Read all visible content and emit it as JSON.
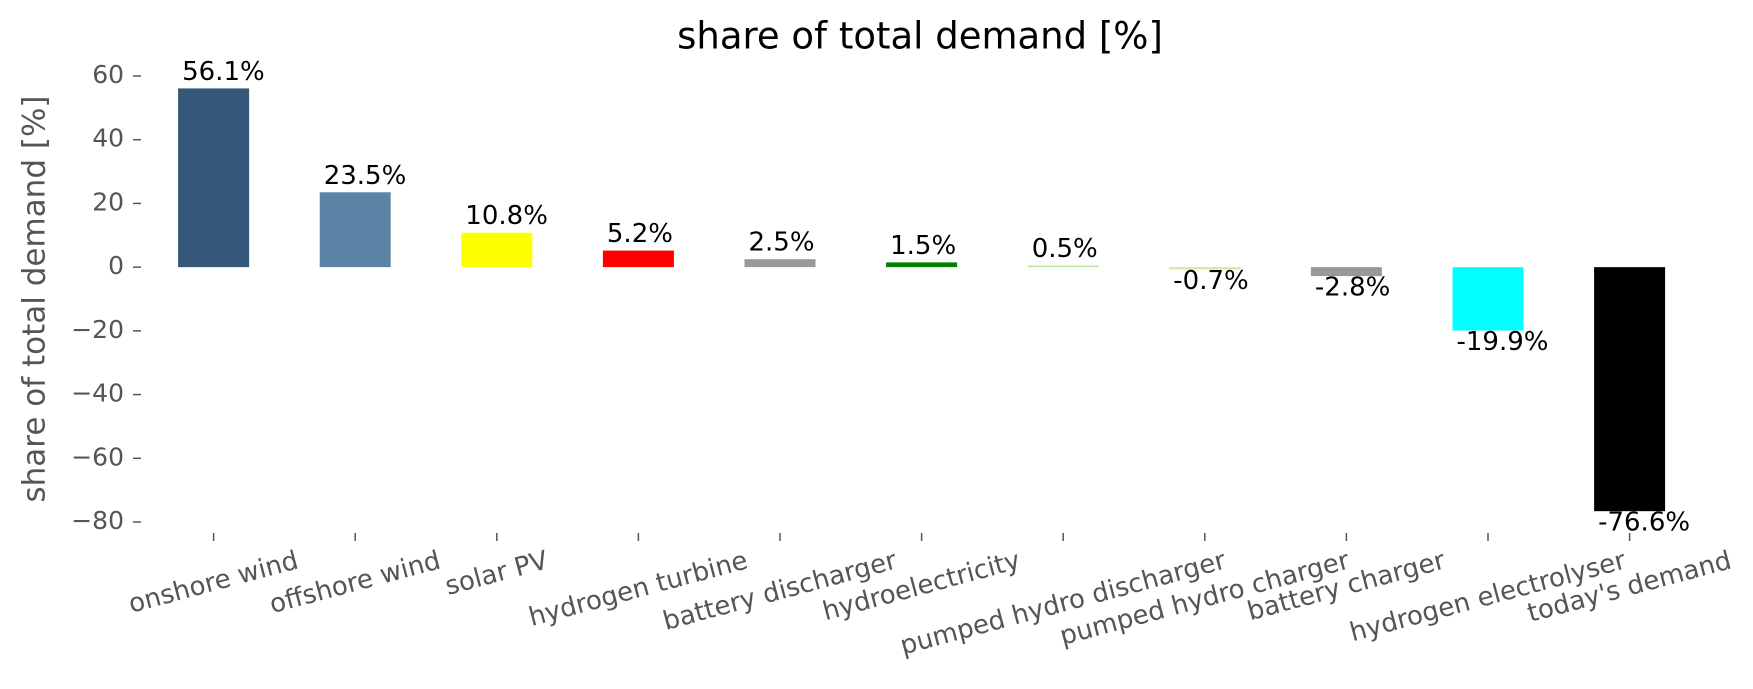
{
  "chart_data": {
    "type": "bar",
    "title": "share of total demand [%]",
    "y_label": "share of total demand [%]",
    "categories": [
      "onshore wind",
      "offshore wind",
      "solar PV",
      "hydrogen turbine",
      "battery discharger",
      "hydroelectricity",
      "pumped hydro discharger",
      "pumped hydro charger",
      "battery charger",
      "hydrogen electrolyser",
      "today's demand"
    ],
    "values": [
      56.1,
      23.5,
      10.8,
      5.2,
      2.5,
      1.5,
      0.5,
      -0.7,
      -2.8,
      -19.9,
      -76.6
    ],
    "value_labels": [
      "56.1%",
      "23.5%",
      "10.8%",
      "5.2%",
      "2.5%",
      "1.5%",
      "0.5%",
      "-0.7%",
      "-2.8%",
      "-19.9%",
      "-76.6%"
    ],
    "colors": [
      "#355878",
      "#5b84a6",
      "#ffff00",
      "#ff0000",
      "#999999",
      "#008000",
      "#b8e6a0",
      "#d5e8a2",
      "#999999",
      "#00ffff",
      "#000000"
    ],
    "ylim": [
      -80,
      60
    ],
    "yticks": [
      {
        "value": -80,
        "label": "−80"
      },
      {
        "value": -60,
        "label": "−60"
      },
      {
        "value": -40,
        "label": "−40"
      },
      {
        "value": -20,
        "label": "−20"
      },
      0,
      20,
      40,
      60
    ],
    "grid": false
  }
}
